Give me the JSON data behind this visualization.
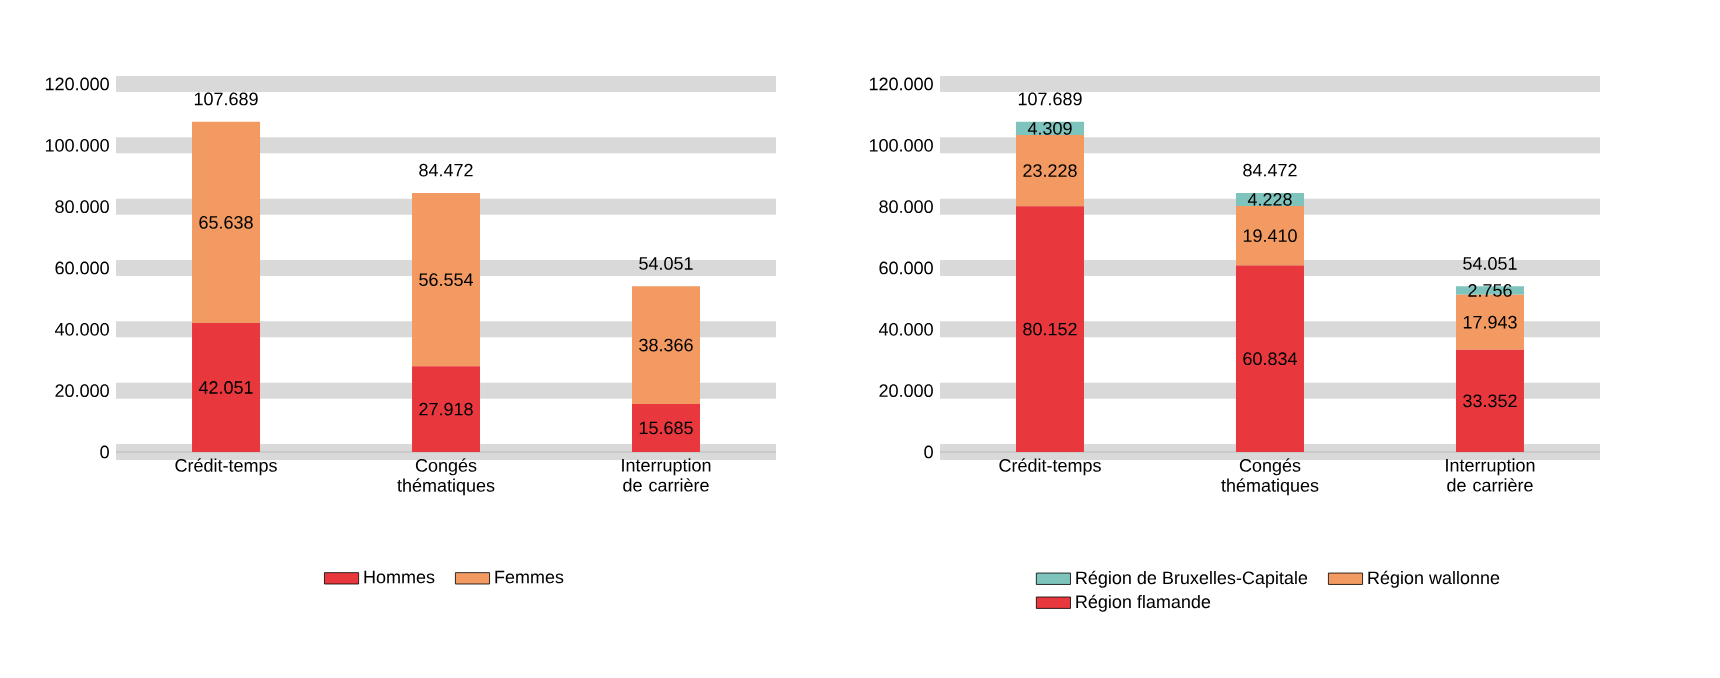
{
  "chart_data": [
    {
      "type": "bar",
      "stacked": true,
      "categories": [
        "Crédit-temps",
        "Congés thématiques",
        "Interruption de carrière"
      ],
      "series": [
        {
          "name": "Hommes",
          "color": "#e8383d",
          "values": [
            42051,
            27918,
            15685
          ],
          "value_labels": [
            "42.051",
            "27.918",
            "15.685"
          ]
        },
        {
          "name": "Femmes",
          "color": "#f29a61",
          "values": [
            65638,
            56554,
            38366
          ],
          "value_labels": [
            "65.638",
            "56.554",
            "38.366"
          ]
        }
      ],
      "totals": [
        "107.689",
        "84.472",
        "54.051"
      ],
      "ylim": [
        0,
        120000
      ],
      "yticks": [
        {
          "value": 0,
          "label": "0"
        },
        {
          "value": 20000,
          "label": "20.000"
        },
        {
          "value": 40000,
          "label": "40.000"
        },
        {
          "value": 60000,
          "label": "60.000"
        },
        {
          "value": 80000,
          "label": "80.000"
        },
        {
          "value": 100000,
          "label": "100.000"
        },
        {
          "value": 120000,
          "label": "120.000"
        }
      ],
      "grid": "y",
      "legend": "bottom"
    },
    {
      "type": "bar",
      "stacked": true,
      "categories": [
        "Crédit-temps",
        "Congés thématiques",
        "Interruption de carrière"
      ],
      "series": [
        {
          "name": "Région flamande",
          "color": "#e8383d",
          "values": [
            80152,
            60834,
            33352
          ],
          "value_labels": [
            "80.152",
            "60.834",
            "33.352"
          ]
        },
        {
          "name": "Région wallonne",
          "color": "#f29a61",
          "values": [
            23228,
            19410,
            17943
          ],
          "value_labels": [
            "23.228",
            "19.410",
            "17.943"
          ]
        },
        {
          "name": "Région de Bruxelles-Capitale",
          "color": "#7fc4bc",
          "values": [
            4309,
            4228,
            2756
          ],
          "value_labels": [
            "4.309",
            "4.228",
            "2.756"
          ]
        }
      ],
      "totals": [
        "107.689",
        "84.472",
        "54.051"
      ],
      "ylim": [
        0,
        120000
      ],
      "yticks": [
        {
          "value": 0,
          "label": "0"
        },
        {
          "value": 20000,
          "label": "20.000"
        },
        {
          "value": 40000,
          "label": "40.000"
        },
        {
          "value": 60000,
          "label": "60.000"
        },
        {
          "value": 80000,
          "label": "80.000"
        },
        {
          "value": 100000,
          "label": "100.000"
        },
        {
          "value": 120000,
          "label": "120.000"
        }
      ],
      "grid": "y",
      "legend": "bottom"
    }
  ]
}
